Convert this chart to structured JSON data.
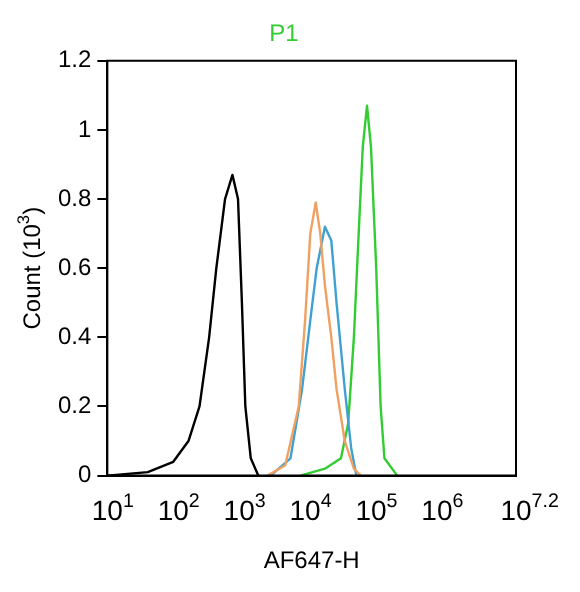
{
  "chart_data": {
    "type": "line",
    "title": "P1",
    "xlabel": "AF647-H",
    "ylabel": "Count (10$^{3}$)",
    "log": "x",
    "grid": false,
    "legend": false,
    "xlim": [
      10,
      15848932
    ],
    "xticks": [
      {
        "value": 10,
        "label": "10$^{1}$"
      },
      {
        "value": 100,
        "label": "10$^{2}$"
      },
      {
        "value": 1000,
        "label": "10$^{3}$"
      },
      {
        "value": 10000,
        "label": "10$^{4}$"
      },
      {
        "value": 100000,
        "label": "10$^{5}$"
      },
      {
        "value": 1000000,
        "label": "10$^{6}$"
      },
      {
        "value": 15848932,
        "label": "10$^{7.2}$"
      }
    ],
    "ylim": [
      0,
      1.2
    ],
    "yticks": [
      0,
      0.2,
      0.4,
      0.6,
      0.8,
      1,
      1.2
    ],
    "series": [
      {
        "color": "#000000",
        "x": [
          10,
          41,
          100,
          170,
          250,
          350,
          450,
          610,
          790,
          960,
          1100,
          1240,
          1500,
          1950
        ],
        "values": [
          0,
          0.01,
          0.04,
          0.1,
          0.2,
          0.4,
          0.6,
          0.8,
          0.87,
          0.8,
          0.5,
          0.2,
          0.05,
          0
        ]
      },
      {
        "color": "#f0a060",
        "x": [
          2700,
          5000,
          8000,
          10000,
          12000,
          14500,
          17000,
          20000,
          25000,
          30000,
          40000,
          55000,
          70000
        ],
        "values": [
          0,
          0.03,
          0.2,
          0.45,
          0.7,
          0.79,
          0.7,
          0.55,
          0.4,
          0.25,
          0.1,
          0.02,
          0
        ]
      },
      {
        "color": "#40a0d0",
        "x": [
          3000,
          6000,
          9000,
          12000,
          15000,
          20000,
          25000,
          30000,
          40000,
          50000,
          60000
        ],
        "values": [
          0,
          0.05,
          0.25,
          0.45,
          0.6,
          0.72,
          0.68,
          0.5,
          0.25,
          0.08,
          0
        ]
      },
      {
        "color": "#33cc33",
        "x": [
          8500,
          20000,
          35000,
          45000,
          55000,
          65000,
          75000,
          87000,
          100000,
          120000,
          140000,
          160000,
          250000
        ],
        "values": [
          0,
          0.02,
          0.05,
          0.15,
          0.4,
          0.7,
          0.95,
          1.07,
          0.95,
          0.6,
          0.2,
          0.05,
          0
        ]
      }
    ]
  }
}
